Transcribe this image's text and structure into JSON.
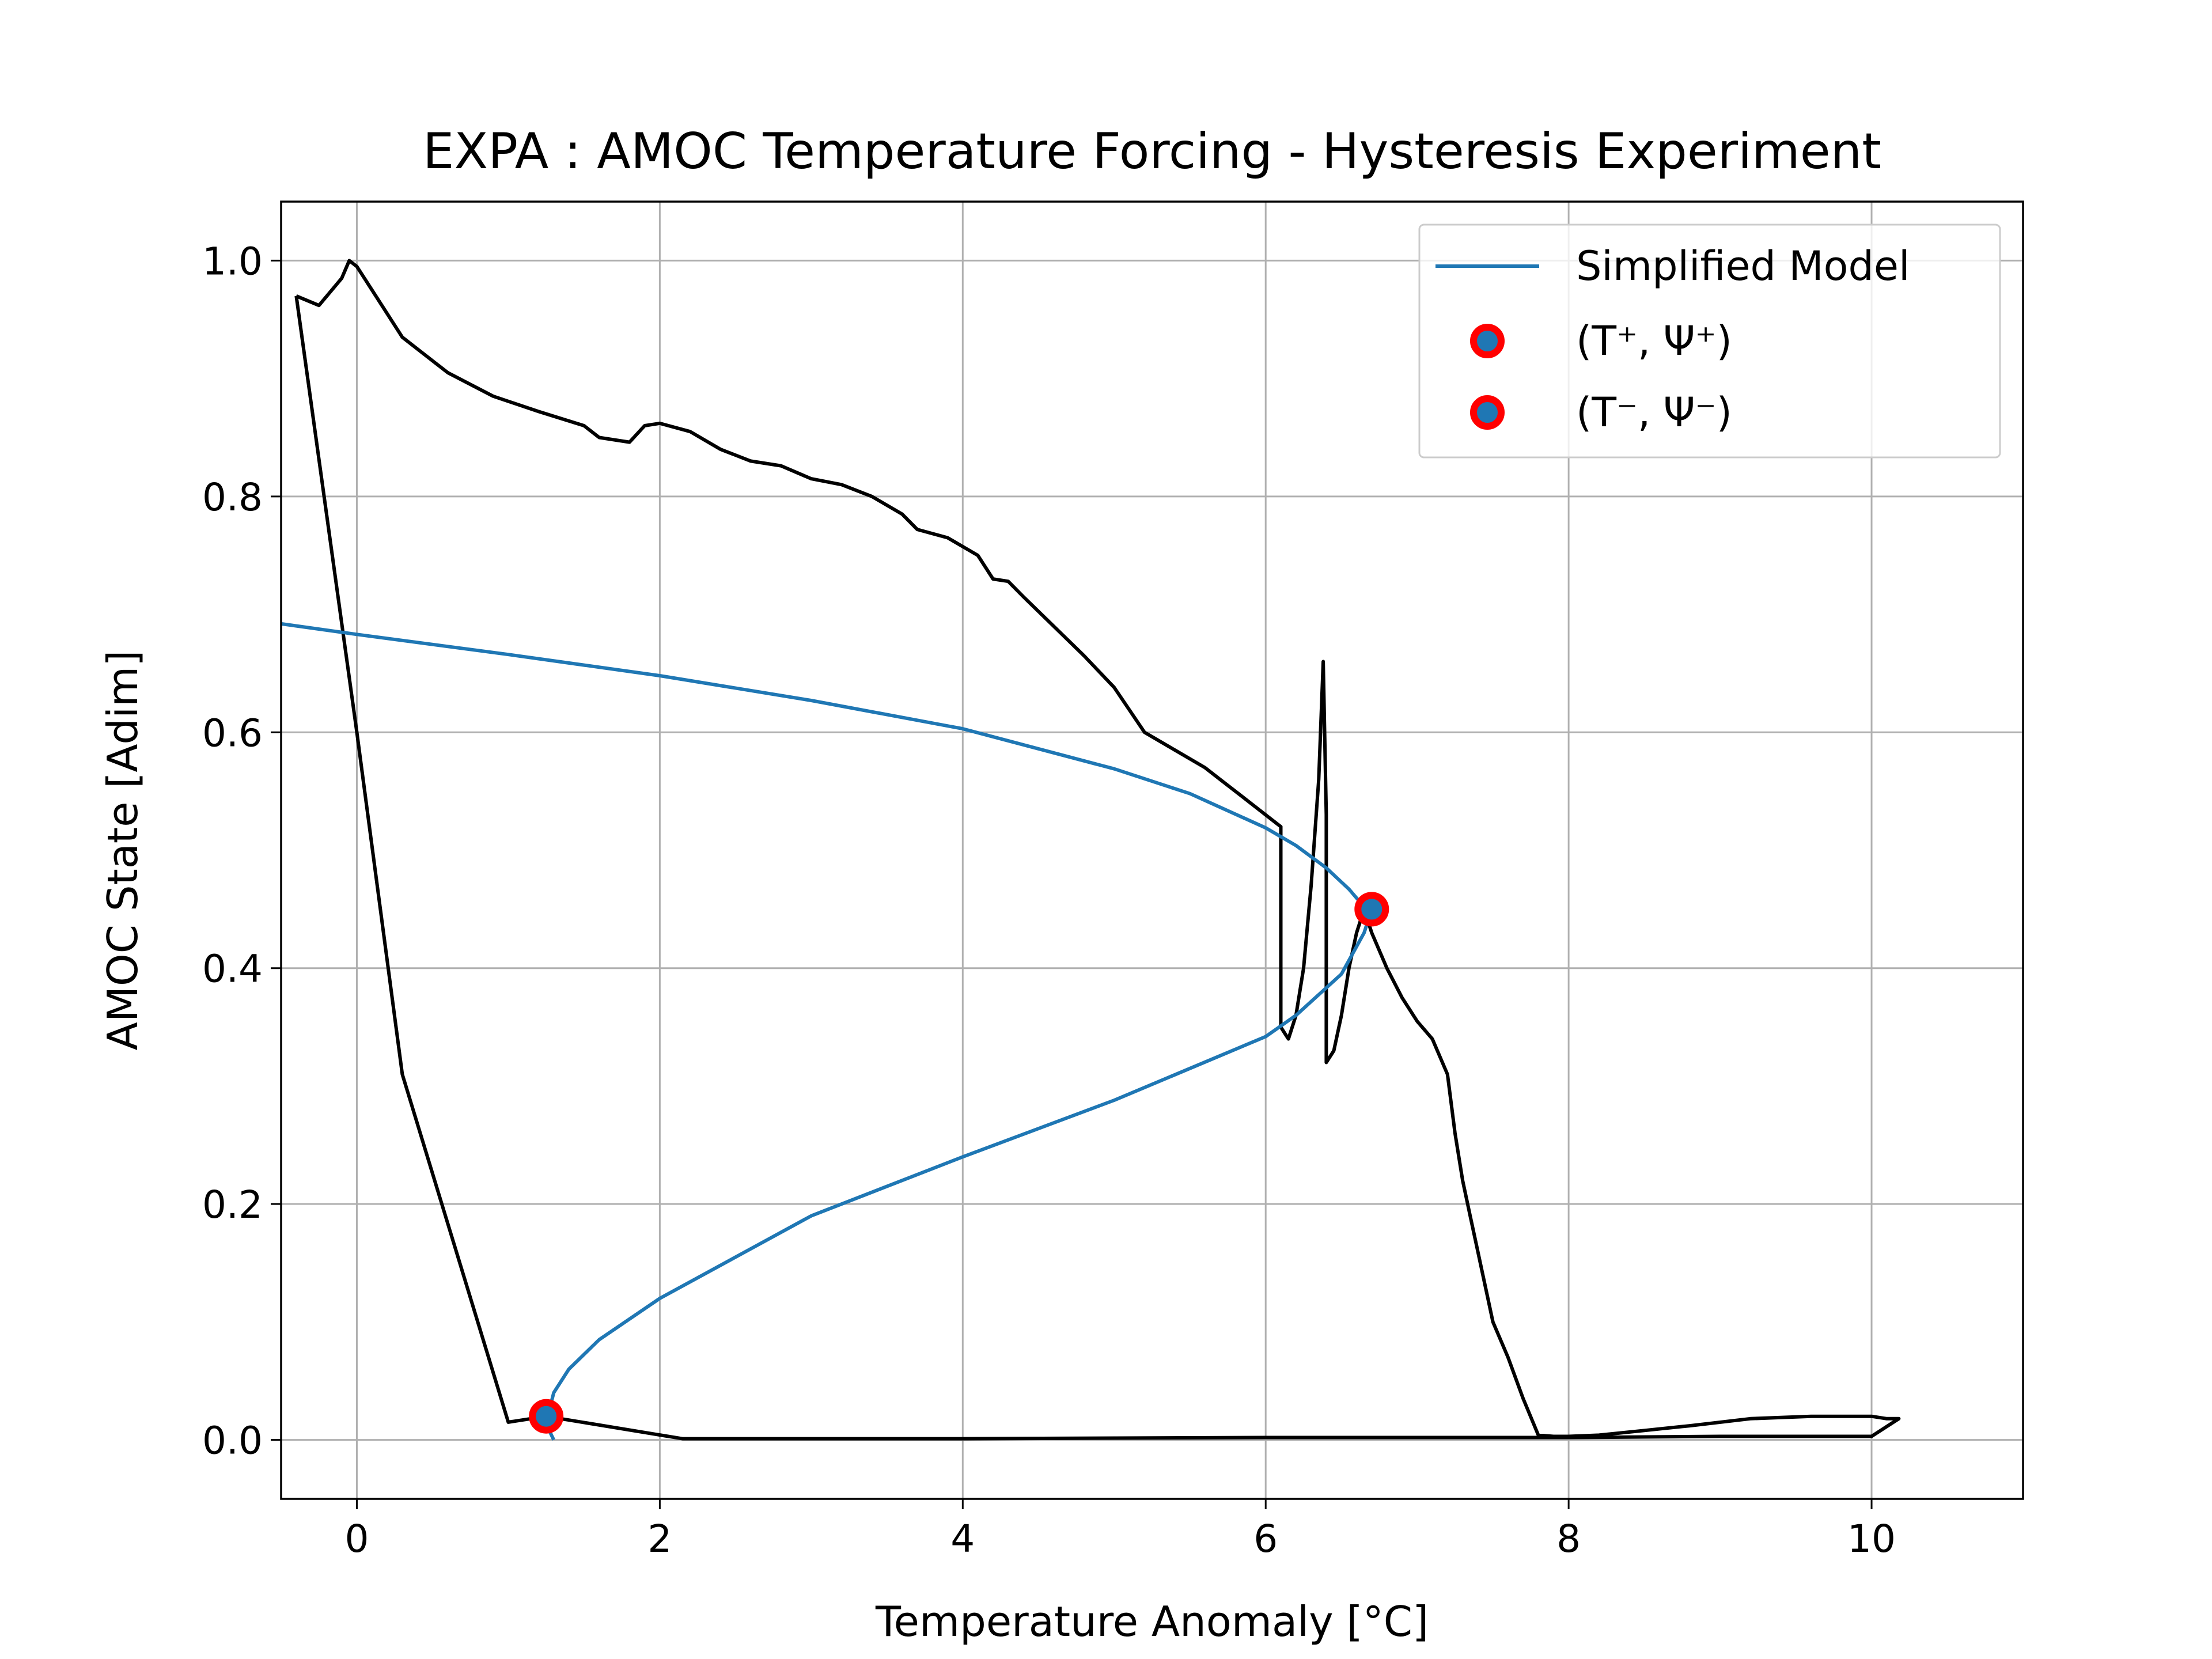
{
  "chart_data": {
    "type": "line",
    "title": "EXPA : AMOC Temperature Forcing - Hysteresis Experiment",
    "xlabel": "Temperature Anomaly [°C]",
    "ylabel": "AMOC State [Adim]",
    "xlim": [
      -0.5,
      11.0
    ],
    "ylim": [
      -0.05,
      1.05
    ],
    "xticks": [
      0,
      2,
      4,
      6,
      8,
      10
    ],
    "xtick_labels": [
      "0",
      "2",
      "4",
      "6",
      "8",
      "10"
    ],
    "yticks": [
      0.0,
      0.2,
      0.4,
      0.6,
      0.8,
      1.0
    ],
    "ytick_labels": [
      "0.0",
      "0.2",
      "0.4",
      "0.6",
      "0.8",
      "1.0"
    ],
    "grid": true,
    "legend_position": "upper right",
    "colors": {
      "model": "#1f77b4",
      "experiment": "#000000",
      "marker_edge": "#ff0000",
      "marker_face": "#1f77b4"
    },
    "series": [
      {
        "name": "Simplified Model",
        "kind": "line",
        "upper_branch": {
          "x": [
            -0.5,
            0.0,
            1.0,
            2.0,
            3.0,
            4.0,
            5.0,
            5.5,
            6.0,
            6.2,
            6.4,
            6.55,
            6.65,
            6.7
          ],
          "y": [
            0.692,
            0.683,
            0.666,
            0.648,
            0.627,
            0.603,
            0.569,
            0.548,
            0.519,
            0.504,
            0.485,
            0.467,
            0.452,
            0.45
          ]
        },
        "lower_branch": {
          "x": [
            6.7,
            6.65,
            6.5,
            6.2,
            6.0,
            5.0,
            4.0,
            3.0,
            2.0,
            1.6,
            1.4,
            1.3,
            1.26,
            1.27,
            1.3
          ],
          "y": [
            0.45,
            0.43,
            0.395,
            0.36,
            0.342,
            0.288,
            0.24,
            0.19,
            0.12,
            0.085,
            0.06,
            0.04,
            0.02,
            0.008,
            0.0
          ]
        }
      },
      {
        "name": "",
        "kind": "line",
        "x": [
          -0.4,
          -0.25,
          -0.1,
          -0.05,
          0.0,
          0.1,
          0.3,
          0.6,
          0.9,
          1.2,
          1.5,
          1.6,
          1.8,
          1.9,
          2.0,
          2.2,
          2.4,
          2.6,
          2.8,
          3.0,
          3.2,
          3.4,
          3.6,
          3.7,
          3.9,
          4.1,
          4.2,
          4.3,
          4.4,
          4.6,
          4.8,
          5.0,
          5.2,
          5.4,
          5.6,
          5.7,
          5.8,
          5.9,
          6.0,
          6.1,
          6.1,
          6.15,
          6.2,
          6.25,
          6.3,
          6.35,
          6.38,
          6.4,
          6.4,
          6.45,
          6.5,
          6.55,
          6.6,
          6.65,
          6.7,
          6.8,
          6.9,
          7.0,
          7.1,
          7.2,
          7.25,
          7.3,
          7.35,
          7.4,
          7.5,
          7.6,
          7.7,
          7.8,
          7.9,
          8.0,
          8.2,
          8.5,
          8.8,
          9.2,
          9.6,
          10.0,
          10.1,
          10.18,
          10.0,
          9.0,
          8.0,
          6.0,
          4.0,
          2.15,
          1.25,
          1.0,
          0.3,
          0.0,
          -0.4
        ],
        "y": [
          0.97,
          0.962,
          0.985,
          1.0,
          0.995,
          0.975,
          0.935,
          0.905,
          0.885,
          0.872,
          0.86,
          0.85,
          0.846,
          0.86,
          0.862,
          0.855,
          0.84,
          0.83,
          0.826,
          0.815,
          0.81,
          0.8,
          0.785,
          0.772,
          0.765,
          0.75,
          0.73,
          0.728,
          0.715,
          0.69,
          0.665,
          0.638,
          0.6,
          0.585,
          0.57,
          0.56,
          0.55,
          0.54,
          0.53,
          0.52,
          0.35,
          0.34,
          0.36,
          0.4,
          0.47,
          0.56,
          0.66,
          0.53,
          0.32,
          0.33,
          0.36,
          0.4,
          0.43,
          0.45,
          0.43,
          0.4,
          0.375,
          0.355,
          0.34,
          0.31,
          0.26,
          0.22,
          0.19,
          0.16,
          0.1,
          0.07,
          0.035,
          0.004,
          0.003,
          0.003,
          0.004,
          0.008,
          0.012,
          0.018,
          0.02,
          0.02,
          0.018,
          0.018,
          0.003,
          0.003,
          0.002,
          0.002,
          0.001,
          0.001,
          0.02,
          0.015,
          0.31,
          0.6,
          0.97
        ]
      },
      {
        "name": "(T⁺, Ψ⁺)",
        "kind": "marker",
        "x": [
          6.7
        ],
        "y": [
          0.45
        ]
      },
      {
        "name": "(T⁻, Ψ⁻)",
        "kind": "marker",
        "x": [
          1.25
        ],
        "y": [
          0.02
        ]
      }
    ],
    "legend": [
      {
        "label": "Simplified Model",
        "kind": "line"
      },
      {
        "label": "(T⁺, Ψ⁺)",
        "kind": "marker"
      },
      {
        "label": "(T⁻, Ψ⁻)",
        "kind": "marker"
      }
    ]
  }
}
